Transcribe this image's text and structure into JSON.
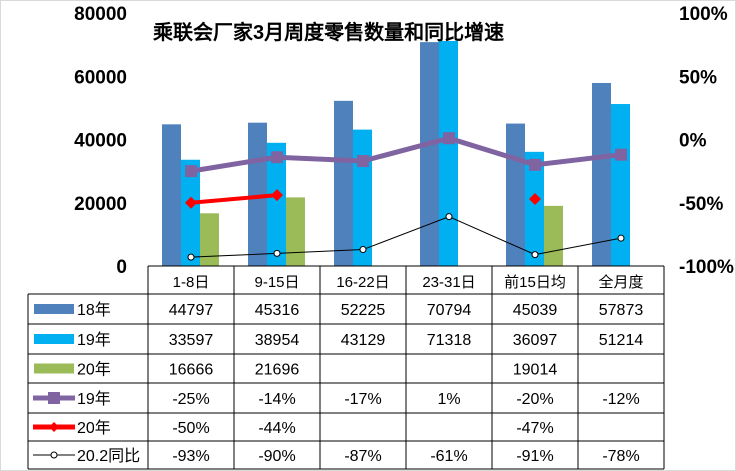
{
  "chart_data": {
    "type": "bar",
    "title": "乘联会厂家3月周度零售数量和同比增速",
    "categories": [
      "1-8日",
      "9-15日",
      "16-22日",
      "23-31日",
      "前15日均",
      "全月度"
    ],
    "left_axis": {
      "ylim": [
        0,
        80000
      ],
      "ticks": [
        "0",
        "20000",
        "40000",
        "60000",
        "80000"
      ]
    },
    "right_axis": {
      "ylim": [
        -100,
        100
      ],
      "ticks": [
        "-100%",
        "-50%",
        "0%",
        "50%",
        "100%"
      ]
    },
    "grid": false,
    "legend": "data-table",
    "bar_series": [
      {
        "name": "18年",
        "color": "#4f81bd",
        "values": [
          44797,
          45316,
          52225,
          70794,
          45039,
          57873
        ]
      },
      {
        "name": "19年",
        "color": "#00b0f0",
        "values": [
          33597,
          38954,
          43129,
          71318,
          36097,
          51214
        ]
      },
      {
        "name": "20年",
        "color": "#9bbb59",
        "values": [
          16666,
          21696,
          null,
          null,
          19014,
          null
        ]
      }
    ],
    "line_series": [
      {
        "name": "19年",
        "color": "#8064a2",
        "marker": "square",
        "values": [
          -25,
          -14,
          -17,
          1,
          -20,
          -12
        ],
        "labels": [
          "-25%",
          "-14%",
          "-17%",
          "1%",
          "-20%",
          "-12%"
        ]
      },
      {
        "name": "20年",
        "color": "#ff0000",
        "marker": "diamond",
        "values": [
          -50,
          -44,
          null,
          null,
          -47,
          null
        ],
        "labels": [
          "-50%",
          "-44%",
          "",
          "",
          "-47%",
          ""
        ]
      },
      {
        "name": "20.2同比",
        "color": "#000000",
        "marker": "circle",
        "values": [
          -93,
          -90,
          -87,
          -61,
          -91,
          -78
        ],
        "labels": [
          "-93%",
          "-90%",
          "-87%",
          "-61%",
          "-91%",
          "-78%"
        ]
      }
    ]
  }
}
